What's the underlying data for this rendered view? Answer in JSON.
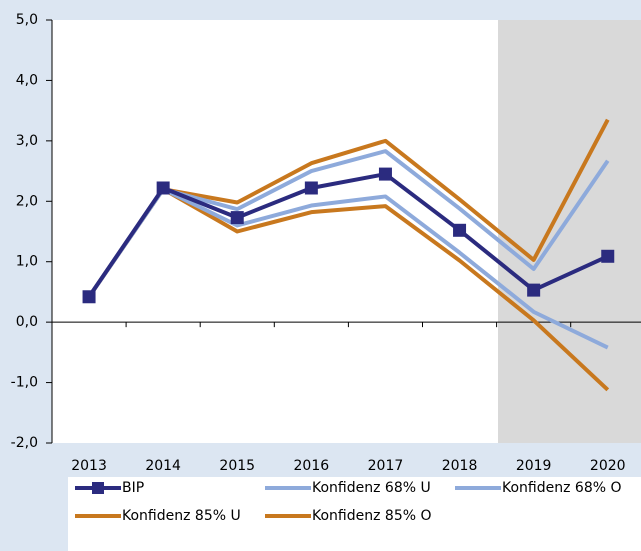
{
  "chart_data": {
    "type": "line",
    "categories": [
      "2013",
      "2014",
      "2015",
      "2016",
      "2017",
      "2018",
      "2019",
      "2020"
    ],
    "series": [
      {
        "name": "BIP",
        "color": "#2b2b7f",
        "marker": "square",
        "values": [
          0.42,
          2.22,
          1.73,
          2.22,
          2.45,
          1.52,
          0.53,
          1.09
        ]
      },
      {
        "name": "Konfidenz 68% U",
        "color": "#8eaadb",
        "values": [
          0.42,
          2.2,
          1.6,
          1.93,
          2.08,
          1.15,
          0.17,
          -0.42
        ]
      },
      {
        "name": "Konfidenz 68% O",
        "color": "#8eaadb",
        "values": [
          0.42,
          2.2,
          1.87,
          2.5,
          2.83,
          1.88,
          0.88,
          2.67
        ]
      },
      {
        "name": "Konfidenz 85% U",
        "color": "#c8781e",
        "values": [
          0.42,
          2.2,
          1.5,
          1.82,
          1.92,
          1.02,
          0.03,
          -1.12
        ]
      },
      {
        "name": "Konfidenz 85% O",
        "color": "#c8781e",
        "values": [
          0.42,
          2.2,
          1.98,
          2.63,
          3.0,
          2.03,
          1.03,
          3.35
        ]
      }
    ],
    "ylim": [
      -2,
      5
    ],
    "yticks": [
      {
        "value": -2,
        "label": "-2,0"
      },
      {
        "value": -1,
        "label": "-1,0"
      },
      {
        "value": 0,
        "label": "0,0"
      },
      {
        "value": 1,
        "label": "1,0"
      },
      {
        "value": 2,
        "label": "2,0"
      },
      {
        "value": 3,
        "label": "3,0"
      },
      {
        "value": 4,
        "label": "4,0"
      },
      {
        "value": 5,
        "label": "5,0"
      }
    ],
    "legend": "bottom"
  }
}
